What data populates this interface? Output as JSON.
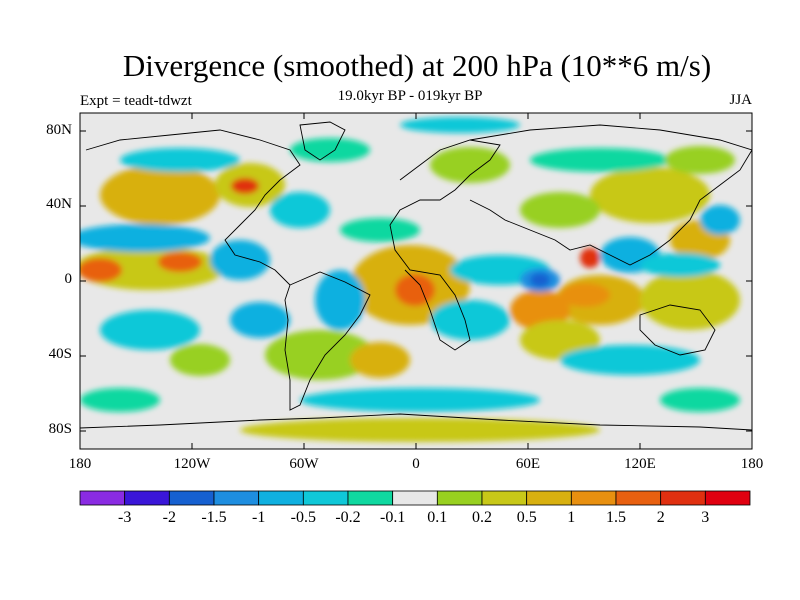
{
  "title": "Divergence (smoothed) at 200 hPa (10**6 m/s)",
  "subtitle": "19.0kyr BP - 019kyr BP",
  "expt": "Expt = teadt-tdwzt",
  "season": "JJA",
  "lat_labels": [
    "80N",
    "40N",
    "0",
    "40S",
    "80S"
  ],
  "lon_labels": [
    "180",
    "120W",
    "60W",
    "0",
    "60E",
    "120E",
    "180"
  ],
  "colorbar": {
    "labels": [
      "-3",
      "-2",
      "-1.5",
      "-1",
      "-0.5",
      "-0.2",
      "-0.1",
      "0.1",
      "0.2",
      "0.5",
      "1",
      "1.5",
      "2",
      "3"
    ],
    "colors": [
      "#8a2be2",
      "#3a16d8",
      "#1660d0",
      "#1e8ee0",
      "#10b0e0",
      "#10c8d8",
      "#10d8a0",
      "#e8e8e8",
      "#98d020",
      "#c8c818",
      "#d8b010",
      "#e89010",
      "#e86010",
      "#e03010",
      "#e00010"
    ]
  },
  "map": {
    "background": "#e8e8e8"
  }
}
